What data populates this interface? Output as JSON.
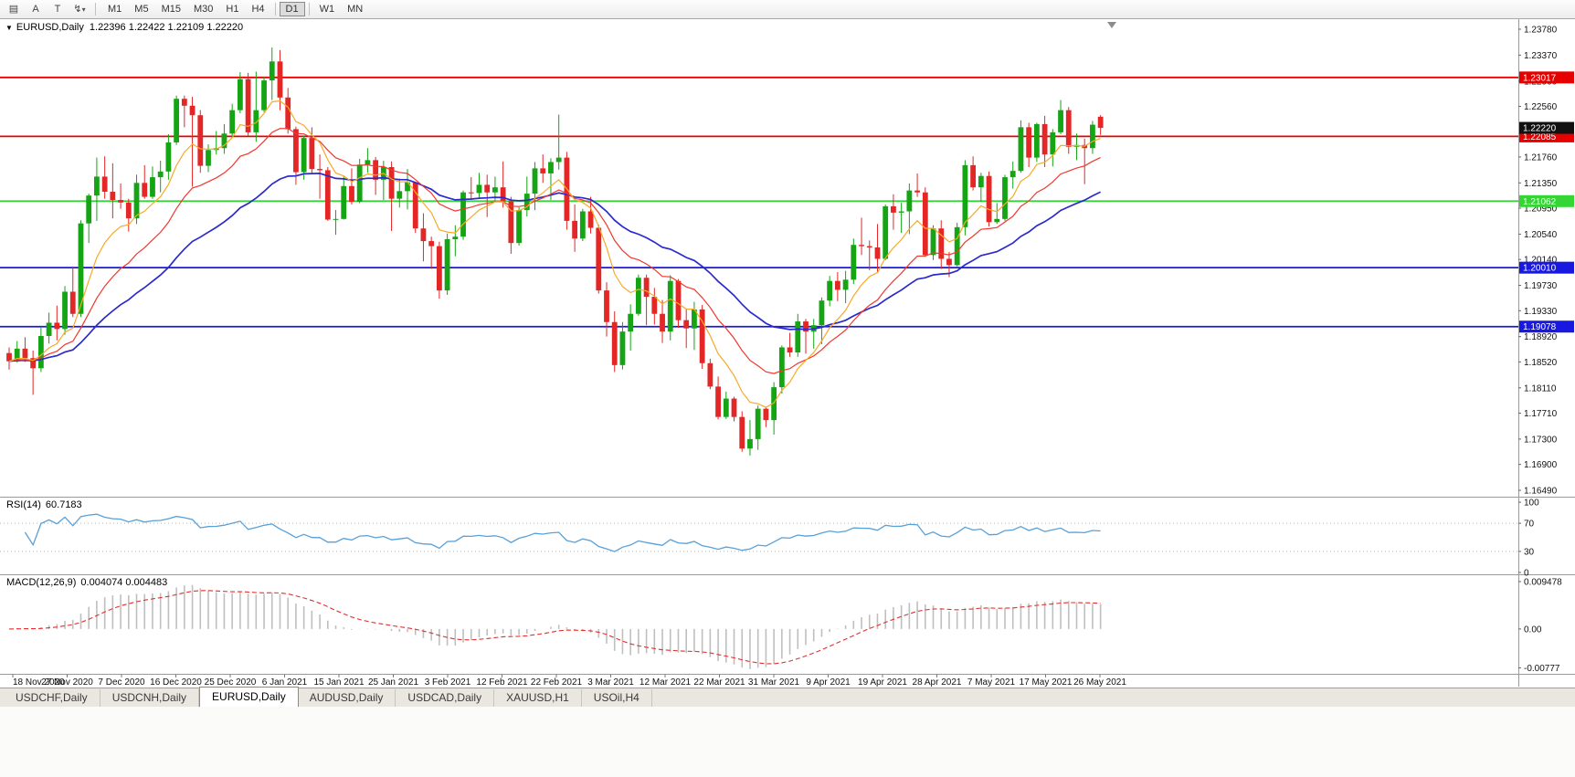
{
  "title": {
    "expander": "▼",
    "symbol": "EURUSD,Daily",
    "ohlc": "1.22396 1.22422 1.22109 1.22220"
  },
  "toolbar": {
    "icons": [
      {
        "name": "chart-grid-icon",
        "glyph": "▤"
      },
      {
        "name": "cursor-tool-icon",
        "glyph": "A"
      },
      {
        "name": "text-tool-icon",
        "glyph": "T"
      },
      {
        "name": "line-tools-icon",
        "glyph": "↯",
        "caret": "▾"
      }
    ],
    "timeframes": [
      "M1",
      "M5",
      "M15",
      "M30",
      "H1",
      "H4",
      "D1",
      "W1",
      "MN"
    ],
    "active_timeframe": "D1"
  },
  "colors": {
    "bull": "#14a414",
    "bear": "#e32626",
    "ma_fast": "#f7a928",
    "ma_mid": "#f0382e",
    "ma_slow": "#2a2ace",
    "rsi": "#58a0d8",
    "macd_hist": "#bfbfbf",
    "macd_signal": "#e03030",
    "hline_red": "#e60000",
    "hline_green": "#33d633",
    "hline_blue": "#1818e0",
    "price_badge": "#111111",
    "axis_text": "#111111"
  },
  "chart_data": {
    "type": "candlestick",
    "symbol": "EURUSD",
    "timeframe": "Daily",
    "last_ohlc": {
      "open": 1.22396,
      "high": 1.22422,
      "low": 1.22109,
      "close": 1.2222
    },
    "price_range": {
      "max": 1.23924,
      "min": 1.16447
    },
    "price_axis_labels": [
      "1.23780",
      "1.23370",
      "1.22960",
      "1.22560",
      "1.21760",
      "1.21350",
      "1.20950",
      "1.20540",
      "1.20140",
      "1.19730",
      "1.19330",
      "1.18920",
      "1.18520",
      "1.18110",
      "1.17710",
      "1.17300",
      "1.16900",
      "1.16490"
    ],
    "current_price": {
      "value": 1.2222,
      "label": "1.22220"
    },
    "hlines": [
      {
        "value": 1.23017,
        "label": "1.23017",
        "color": "red"
      },
      {
        "value": 1.22085,
        "label": "1.22085",
        "color": "red"
      },
      {
        "value": 1.21062,
        "label": "1.21062",
        "color": "green"
      },
      {
        "value": 1.2001,
        "label": "1.20010",
        "color": "blue"
      },
      {
        "value": 1.19078,
        "label": "1.19078",
        "color": "blue"
      }
    ],
    "moving_averages": [
      {
        "type": "ema",
        "period": 8,
        "color_key": "ma_fast"
      },
      {
        "type": "ema",
        "period": 17,
        "color_key": "ma_mid"
      },
      {
        "type": "ema",
        "period": 34,
        "color_key": "ma_slow"
      }
    ],
    "date_labels": [
      "18 Nov 2020",
      "27 Nov 2020",
      "7 Dec 2020",
      "16 Dec 2020",
      "25 Dec 2020",
      "6 Jan 2021",
      "15 Jan 2021",
      "25 Jan 2021",
      "3 Feb 2021",
      "12 Feb 2021",
      "22 Feb 2021",
      "3 Mar 2021",
      "12 Mar 2021",
      "22 Mar 2021",
      "31 Mar 2021",
      "9 Apr 2021",
      "19 Apr 2021",
      "28 Apr 2021",
      "7 May 2021",
      "17 May 2021",
      "26 May 2021"
    ],
    "candles": [
      [
        1.1866,
        1.1875,
        1.184,
        1.1853
      ],
      [
        1.1853,
        1.1885,
        1.1851,
        1.1873
      ],
      [
        1.1873,
        1.1891,
        1.1852,
        1.1858
      ],
      [
        1.1858,
        1.187,
        1.18,
        1.1842
      ],
      [
        1.1842,
        1.1906,
        1.1836,
        1.1893
      ],
      [
        1.1893,
        1.193,
        1.1881,
        1.1914
      ],
      [
        1.1914,
        1.1941,
        1.1886,
        1.1904
      ],
      [
        1.1904,
        1.1972,
        1.1895,
        1.1963
      ],
      [
        1.1963,
        1.2003,
        1.1923,
        1.1928
      ],
      [
        1.1928,
        1.2076,
        1.1923,
        1.2071
      ],
      [
        1.2071,
        1.2118,
        1.204,
        1.2115
      ],
      [
        1.2115,
        1.2175,
        1.2075,
        1.2145
      ],
      [
        1.2145,
        1.2177,
        1.211,
        1.2121
      ],
      [
        1.2121,
        1.2166,
        1.2079,
        1.2108
      ],
      [
        1.2108,
        1.2134,
        1.2094,
        1.2104
      ],
      [
        1.2104,
        1.211,
        1.2058,
        1.2079
      ],
      [
        1.2079,
        1.2148,
        1.207,
        1.2135
      ],
      [
        1.2135,
        1.2163,
        1.211,
        1.2113
      ],
      [
        1.2113,
        1.2161,
        1.211,
        1.2144
      ],
      [
        1.2144,
        1.217,
        1.212,
        1.2153
      ],
      [
        1.2153,
        1.2212,
        1.214,
        1.2199
      ],
      [
        1.2199,
        1.2273,
        1.2195,
        1.2268
      ],
      [
        1.2268,
        1.2273,
        1.2223,
        1.2257
      ],
      [
        1.2257,
        1.2271,
        1.2129,
        1.2242
      ],
      [
        1.2242,
        1.225,
        1.2151,
        1.2162
      ],
      [
        1.2162,
        1.2196,
        1.2152,
        1.2187
      ],
      [
        1.2187,
        1.2217,
        1.218,
        1.219
      ],
      [
        1.219,
        1.2228,
        1.2181,
        1.2213
      ],
      [
        1.2213,
        1.226,
        1.2208,
        1.225
      ],
      [
        1.225,
        1.231,
        1.2245,
        1.2299
      ],
      [
        1.2299,
        1.2309,
        1.221,
        1.2215
      ],
      [
        1.2215,
        1.2311,
        1.22,
        1.225
      ],
      [
        1.225,
        1.2303,
        1.2247,
        1.2297
      ],
      [
        1.2297,
        1.2349,
        1.2266,
        1.2327
      ],
      [
        1.2327,
        1.2345,
        1.225,
        1.227
      ],
      [
        1.227,
        1.2285,
        1.2213,
        1.222
      ],
      [
        1.222,
        1.2224,
        1.2132,
        1.2152
      ],
      [
        1.2152,
        1.221,
        1.214,
        1.2206
      ],
      [
        1.2206,
        1.2223,
        1.215,
        1.2157
      ],
      [
        1.2157,
        1.218,
        1.211,
        1.2155
      ],
      [
        1.2155,
        1.216,
        1.2075,
        1.2077
      ],
      [
        1.2077,
        1.2092,
        1.2053,
        1.2078
      ],
      [
        1.2078,
        1.2145,
        1.2077,
        1.213
      ],
      [
        1.213,
        1.2158,
        1.2101,
        1.2105
      ],
      [
        1.2105,
        1.2173,
        1.2103,
        1.2164
      ],
      [
        1.2164,
        1.219,
        1.2151,
        1.2171
      ],
      [
        1.2171,
        1.2176,
        1.2116,
        1.214
      ],
      [
        1.214,
        1.217,
        1.2108,
        1.216
      ],
      [
        1.216,
        1.2169,
        1.2059,
        1.211
      ],
      [
        1.211,
        1.2142,
        1.2096,
        1.2122
      ],
      [
        1.2122,
        1.2157,
        1.2093,
        1.2136
      ],
      [
        1.2136,
        1.2137,
        1.2056,
        1.2063
      ],
      [
        1.2063,
        1.2087,
        1.2011,
        1.2043
      ],
      [
        1.2043,
        1.205,
        1.1999,
        1.2035
      ],
      [
        1.2035,
        1.2042,
        1.1952,
        1.1965
      ],
      [
        1.1965,
        1.2055,
        1.1958,
        1.2046
      ],
      [
        1.2046,
        1.2068,
        1.2019,
        1.205
      ],
      [
        1.205,
        1.2123,
        1.2045,
        1.212
      ],
      [
        1.212,
        1.2144,
        1.2108,
        1.2119
      ],
      [
        1.2119,
        1.2151,
        1.211,
        1.2132
      ],
      [
        1.2132,
        1.2148,
        1.2081,
        1.212
      ],
      [
        1.212,
        1.2145,
        1.2105,
        1.2128
      ],
      [
        1.2128,
        1.2169,
        1.2096,
        1.2106
      ],
      [
        1.2106,
        1.2113,
        1.2023,
        1.204
      ],
      [
        1.204,
        1.2097,
        1.2036,
        1.2092
      ],
      [
        1.2092,
        1.2145,
        1.2082,
        1.2118
      ],
      [
        1.2118,
        1.2168,
        1.2092,
        1.2158
      ],
      [
        1.2158,
        1.218,
        1.2135,
        1.215
      ],
      [
        1.215,
        1.2174,
        1.2108,
        1.2168
      ],
      [
        1.2168,
        1.2243,
        1.2156,
        1.2175
      ],
      [
        1.2175,
        1.2184,
        1.2061,
        1.2075
      ],
      [
        1.2075,
        1.2101,
        1.2026,
        1.2047
      ],
      [
        1.2047,
        1.2094,
        1.2043,
        1.209
      ],
      [
        1.209,
        1.2113,
        1.2055,
        1.2064
      ],
      [
        1.2064,
        1.2069,
        1.196,
        1.1965
      ],
      [
        1.1965,
        1.1978,
        1.1892,
        1.1915
      ],
      [
        1.1915,
        1.1932,
        1.1836,
        1.1847
      ],
      [
        1.1847,
        1.1915,
        1.184,
        1.19
      ],
      [
        1.19,
        1.1943,
        1.187,
        1.1928
      ],
      [
        1.1928,
        1.199,
        1.1925,
        1.1985
      ],
      [
        1.1985,
        1.199,
        1.191,
        1.1955
      ],
      [
        1.1955,
        1.1969,
        1.1911,
        1.1928
      ],
      [
        1.1928,
        1.195,
        1.1882,
        1.19
      ],
      [
        1.19,
        1.1989,
        1.1886,
        1.198
      ],
      [
        1.198,
        1.1983,
        1.1906,
        1.1918
      ],
      [
        1.1918,
        1.1936,
        1.1874,
        1.1905
      ],
      [
        1.1905,
        1.1947,
        1.1871,
        1.1935
      ],
      [
        1.1935,
        1.1942,
        1.1841,
        1.185
      ],
      [
        1.185,
        1.1857,
        1.1809,
        1.1813
      ],
      [
        1.1813,
        1.1829,
        1.1761,
        1.1765
      ],
      [
        1.1765,
        1.1805,
        1.1762,
        1.1794
      ],
      [
        1.1794,
        1.1797,
        1.1758,
        1.1765
      ],
      [
        1.1765,
        1.1774,
        1.171,
        1.1715
      ],
      [
        1.1715,
        1.176,
        1.1704,
        1.173
      ],
      [
        1.173,
        1.1783,
        1.1713,
        1.1778
      ],
      [
        1.1778,
        1.1781,
        1.1749,
        1.176
      ],
      [
        1.176,
        1.182,
        1.1737,
        1.1812
      ],
      [
        1.1812,
        1.1878,
        1.1802,
        1.1875
      ],
      [
        1.1875,
        1.1898,
        1.186,
        1.1867
      ],
      [
        1.1867,
        1.1928,
        1.186,
        1.1916
      ],
      [
        1.1916,
        1.192,
        1.1865,
        1.19
      ],
      [
        1.19,
        1.192,
        1.1873,
        1.191
      ],
      [
        1.191,
        1.1954,
        1.188,
        1.1949
      ],
      [
        1.1949,
        1.1988,
        1.194,
        1.198
      ],
      [
        1.198,
        1.1994,
        1.1948,
        1.1966
      ],
      [
        1.1966,
        1.1996,
        1.1945,
        1.1982
      ],
      [
        1.1982,
        1.2047,
        1.1975,
        1.2037
      ],
      [
        1.2037,
        1.208,
        1.2021,
        1.2035
      ],
      [
        1.2035,
        1.2044,
        1.1997,
        1.2033
      ],
      [
        1.2033,
        1.207,
        1.1994,
        1.2015
      ],
      [
        1.2015,
        1.2101,
        1.2013,
        1.2098
      ],
      [
        1.2098,
        1.2117,
        1.2061,
        1.2088
      ],
      [
        1.2088,
        1.2104,
        1.2056,
        1.209
      ],
      [
        1.209,
        1.2134,
        1.2054,
        1.2123
      ],
      [
        1.2123,
        1.215,
        1.2113,
        1.212
      ],
      [
        1.212,
        1.2128,
        1.2018,
        1.2021
      ],
      [
        1.2021,
        1.2068,
        1.2013,
        1.2063
      ],
      [
        1.2063,
        1.2076,
        1.1999,
        1.2015
      ],
      [
        1.2015,
        1.2026,
        1.1986,
        1.2005
      ],
      [
        1.2005,
        1.2072,
        1.2003,
        1.2065
      ],
      [
        1.2065,
        1.2171,
        1.2052,
        1.2163
      ],
      [
        1.2163,
        1.2177,
        1.2123,
        1.2128
      ],
      [
        1.2128,
        1.2151,
        1.2105,
        1.2146
      ],
      [
        1.2146,
        1.2153,
        1.2066,
        1.2073
      ],
      [
        1.2073,
        1.2103,
        1.207,
        1.2078
      ],
      [
        1.2078,
        1.2148,
        1.2075,
        1.2144
      ],
      [
        1.2144,
        1.2169,
        1.2126,
        1.2154
      ],
      [
        1.2154,
        1.2234,
        1.2151,
        1.2223
      ],
      [
        1.2223,
        1.223,
        1.216,
        1.2175
      ],
      [
        1.2175,
        1.223,
        1.2168,
        1.2228
      ],
      [
        1.2228,
        1.2241,
        1.216,
        1.218
      ],
      [
        1.218,
        1.222,
        1.2161,
        1.2215
      ],
      [
        1.2215,
        1.2266,
        1.2212,
        1.225
      ],
      [
        1.225,
        1.2255,
        1.2181,
        1.2192
      ],
      [
        1.2192,
        1.2213,
        1.2171,
        1.2195
      ],
      [
        1.2195,
        1.2205,
        1.2133,
        1.219
      ],
      [
        1.219,
        1.2233,
        1.2181,
        1.2227
      ],
      [
        1.22396,
        1.22422,
        1.22109,
        1.2222
      ]
    ],
    "rsi": {
      "label": "RSI(14)",
      "value": "60.7183",
      "period": 14,
      "levels": [
        70,
        30
      ],
      "axis_labels": [
        "100",
        "70",
        "30",
        "0"
      ],
      "range": [
        0,
        100
      ]
    },
    "macd": {
      "label": "MACD(12,26,9)",
      "values": "0.004074 0.004483",
      "fast": 12,
      "slow": 26,
      "signal": 9,
      "axis_labels": [
        {
          "text": "0.009478",
          "value": 0.009478
        },
        {
          "text": "0.00",
          "value": 0
        },
        {
          "text": "-0.00777",
          "value": -0.00777
        }
      ],
      "range": {
        "max": 0.0102,
        "min": -0.0086
      }
    }
  },
  "tabs": {
    "items": [
      "USDCHF,Daily",
      "USDCNH,Daily",
      "EURUSD,Daily",
      "AUDUSD,Daily",
      "USDCAD,Daily",
      "XAUUSD,H1",
      "USOil,H4"
    ],
    "active": "EURUSD,Daily"
  }
}
